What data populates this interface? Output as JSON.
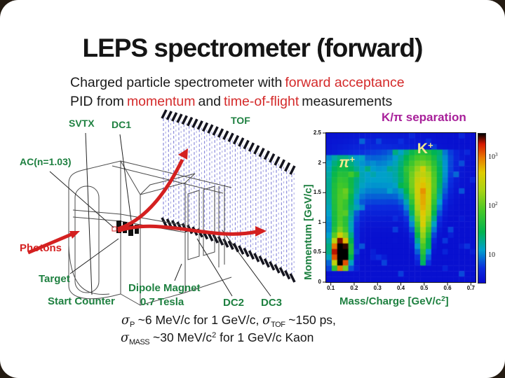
{
  "slide": {
    "title": "LEPS spectrometer (forward)",
    "subtitle": {
      "s1": "Charged particle spectrometer with",
      "s2": "forward acceptance",
      "s3": "PID from",
      "s4": "momentum",
      "s5": "and",
      "s6": "time-of-flight",
      "s7": "measurements"
    }
  },
  "diagram": {
    "labels": {
      "svtx": "SVTX",
      "dc1": "DC1",
      "tof": "TOF",
      "ac": "AC(n=1.03)",
      "photons": "Photons",
      "target": "Target",
      "start_counter": "Start Counter",
      "dipole_magnet": "Dipole Magnet",
      "dipole_field": "0.7 Tesla",
      "dc2": "DC2",
      "dc3": "DC3"
    },
    "tof_slats": 26
  },
  "chart_data": {
    "type": "heatmap",
    "title": "K/π separation",
    "ylabel": "Momentum [GeV/c]",
    "xlabel": "Mass/Charge [GeV/c2]",
    "xlabel_pre": "Mass/Charge [GeV/c",
    "xlabel_sup": "2",
    "xlabel_post": "]",
    "xlim": [
      0.08,
      0.72
    ],
    "ylim": [
      0,
      2.5
    ],
    "xticks": [
      0.1,
      0.2,
      0.3,
      0.4,
      0.5,
      0.6,
      0.7
    ],
    "yticks": [
      0,
      0.5,
      1,
      1.5,
      2,
      2.5
    ],
    "scale": "log",
    "grid": false,
    "colorbar_labels": [
      {
        "base": "10",
        "exp": "3"
      },
      {
        "base": "10",
        "exp": "2"
      },
      {
        "base": "10",
        "exp": ""
      }
    ],
    "annotations": [
      {
        "text": "π",
        "sup": "+",
        "x": 0.165,
        "y": 1.98
      },
      {
        "text": "K",
        "sup": "+",
        "x": 0.5,
        "y": 2.22
      }
    ],
    "clusters": [
      {
        "name": "pi+",
        "mass": 0.142,
        "momentum_peak": 0.46,
        "momentum_range": [
          0.15,
          2.1
        ],
        "peak": 1.0
      },
      {
        "name": "K+",
        "mass": 0.497,
        "momentum_peak": 1.3,
        "momentum_range": [
          0.32,
          2.2
        ],
        "peak": 0.72
      }
    ],
    "palette": [
      "#0808cc",
      "#0a2ede",
      "#00a0cc",
      "#00b450",
      "#44c828",
      "#a8d414",
      "#e0cc00",
      "#e87800",
      "#d81800",
      "#000000"
    ]
  },
  "results": {
    "l1_sigma1": "σ",
    "l1_sub1": "P",
    "l1_t1": " ~6 MeV/c for 1 GeV/c,  ",
    "l1_sigma2": "σ",
    "l1_sub2": "TOF",
    "l1_t2": " ~150 ps,",
    "l2_sigma": "σ",
    "l2_sub": "MASS",
    "l2_t1": " ~30 MeV/c",
    "l2_sup": "2",
    "l2_t2": " for 1 GeV/c Kaon"
  }
}
